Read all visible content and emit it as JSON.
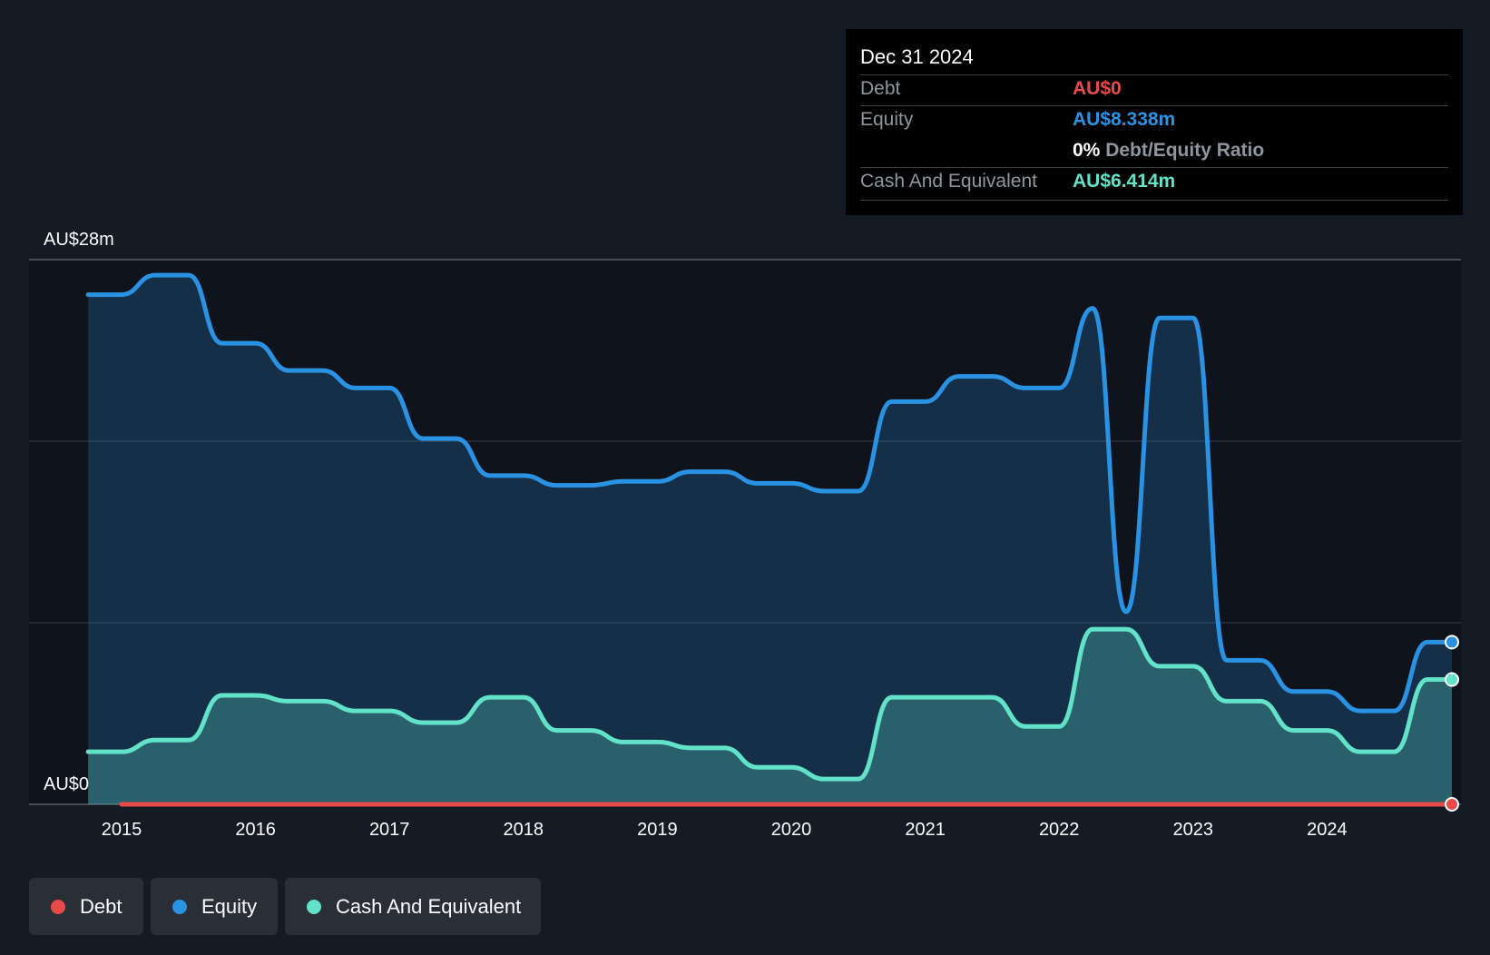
{
  "colors": {
    "background": "#151b24",
    "plot_background": "#0f141c",
    "debt": "#e84a4a",
    "equity": "#2a92e3",
    "cash": "#62e2c8"
  },
  "tooltip": {
    "date": "Dec 31 2024",
    "debt_label": "Debt",
    "debt_value": "AU$0",
    "equity_label": "Equity",
    "equity_value": "AU$8.338m",
    "ratio_value": "0%",
    "ratio_label": "Debt/Equity Ratio",
    "cash_label": "Cash And Equivalent",
    "cash_value": "AU$6.414m"
  },
  "legend": [
    {
      "label": "Debt",
      "color": "#e84a4a"
    },
    {
      "label": "Equity",
      "color": "#2a92e3"
    },
    {
      "label": "Cash And Equivalent",
      "color": "#62e2c8"
    }
  ],
  "chart_data": {
    "type": "area",
    "y_top_label": "AU$28m",
    "y_bottom_label": "AU$0",
    "ylim": [
      0,
      28
    ],
    "xlim": [
      2014.0,
      2025.0
    ],
    "x_ticks": [
      "2015",
      "2016",
      "2017",
      "2018",
      "2019",
      "2020",
      "2021",
      "2022",
      "2023",
      "2024"
    ],
    "grid": true,
    "series": [
      {
        "name": "Equity",
        "x": [
          2014.75,
          2015.0,
          2015.25,
          2015.5,
          2015.75,
          2016.0,
          2016.25,
          2016.5,
          2016.75,
          2017.0,
          2017.25,
          2017.5,
          2017.75,
          2018.0,
          2018.25,
          2018.5,
          2018.75,
          2019.0,
          2019.25,
          2019.5,
          2019.75,
          2020.0,
          2020.25,
          2020.5,
          2020.75,
          2021.0,
          2021.25,
          2021.5,
          2021.75,
          2022.0,
          2022.25,
          2022.5,
          2022.75,
          2023.0,
          2023.25,
          2023.5,
          2023.75,
          2024.0,
          2024.25,
          2024.5,
          2024.75,
          2025.0
        ],
        "values": [
          26.2,
          26.2,
          27.2,
          27.2,
          23.7,
          23.7,
          22.3,
          22.3,
          21.4,
          21.4,
          18.8,
          18.8,
          16.9,
          16.9,
          16.4,
          16.4,
          16.6,
          16.6,
          17.1,
          17.1,
          16.5,
          16.5,
          16.1,
          16.1,
          20.7,
          20.7,
          22.0,
          22.0,
          21.4,
          21.4,
          25.5,
          9.9,
          25.0,
          25.0,
          7.4,
          7.4,
          5.8,
          5.8,
          4.8,
          4.8,
          8.338,
          8.338
        ]
      },
      {
        "name": "Cash And Equivalent",
        "x": [
          2014.75,
          2015.0,
          2015.25,
          2015.5,
          2015.75,
          2016.0,
          2016.25,
          2016.5,
          2016.75,
          2017.0,
          2017.25,
          2017.5,
          2017.75,
          2018.0,
          2018.25,
          2018.5,
          2018.75,
          2019.0,
          2019.25,
          2019.5,
          2019.75,
          2020.0,
          2020.25,
          2020.5,
          2020.75,
          2021.0,
          2021.25,
          2021.5,
          2021.75,
          2022.0,
          2022.25,
          2022.5,
          2022.75,
          2023.0,
          2023.25,
          2023.5,
          2023.75,
          2024.0,
          2024.25,
          2024.5,
          2024.75,
          2025.0
        ],
        "values": [
          2.7,
          2.7,
          3.3,
          3.3,
          5.6,
          5.6,
          5.3,
          5.3,
          4.8,
          4.8,
          4.2,
          4.2,
          5.5,
          5.5,
          3.8,
          3.8,
          3.2,
          3.2,
          2.9,
          2.9,
          1.9,
          1.9,
          1.3,
          1.3,
          5.5,
          5.5,
          5.5,
          5.5,
          4.0,
          4.0,
          9.0,
          9.0,
          7.1,
          7.1,
          5.3,
          5.3,
          3.8,
          3.8,
          2.7,
          2.7,
          6.414,
          6.414
        ]
      },
      {
        "name": "Debt",
        "x": [
          2015.0,
          2025.0
        ],
        "values": [
          0,
          0
        ]
      }
    ]
  }
}
